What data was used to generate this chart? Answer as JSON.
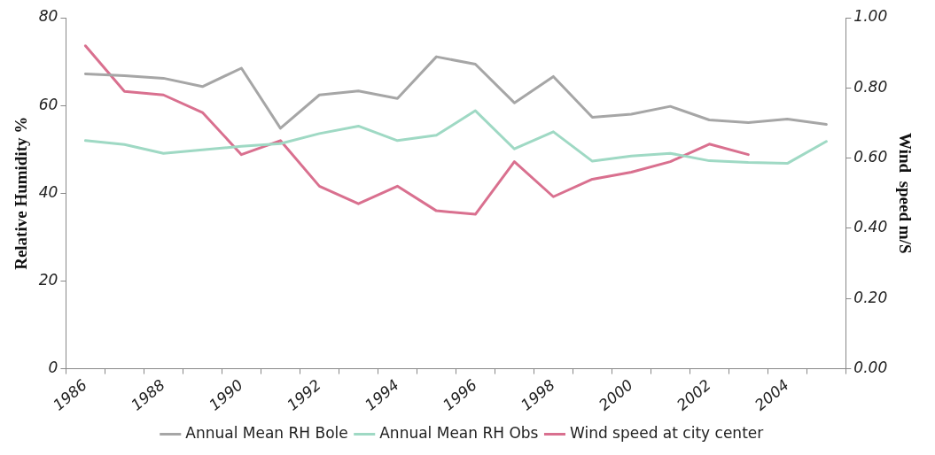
{
  "chart_data": {
    "type": "line",
    "ylabel": "Relative Humidity %",
    "y2label": "Wind  speed m/S",
    "categories": [
      "1986",
      null,
      "1988",
      null,
      "1990",
      null,
      "1992",
      null,
      "1994",
      null,
      "1996",
      null,
      "1998",
      null,
      "2000",
      null,
      "2002",
      null,
      "2004",
      null
    ],
    "series": [
      {
        "name": "Annual Mean RH Bole",
        "color": "#a6a6a6",
        "values": [
          67.2,
          66.8,
          66.2,
          64.3,
          68.5,
          54.8,
          62.4,
          63.3,
          61.6,
          71.1,
          69.4,
          60.6,
          66.6,
          57.3,
          58.0,
          59.8,
          56.7,
          56.1,
          56.9,
          55.7
        ]
      },
      {
        "name": "Annual Mean RH Obs",
        "color": "#9fd9c4",
        "values": [
          52.0,
          51.1,
          49.1,
          49.9,
          50.7,
          51.3,
          53.6,
          55.3,
          52.0,
          53.2,
          58.8,
          50.1,
          54.0,
          47.3,
          48.5,
          49.1,
          47.4,
          47.0,
          46.8,
          51.8
        ]
      },
      {
        "name": "Wind speed at city center",
        "color": "#d9708f",
        "axis": "y2",
        "values": [
          0.92,
          0.79,
          0.78,
          0.73,
          0.61,
          0.65,
          0.52,
          0.47,
          0.52,
          0.45,
          0.44,
          0.59,
          0.49,
          0.54,
          0.56,
          0.59,
          0.64,
          0.61,
          null,
          null
        ]
      }
    ],
    "ylim": [
      0,
      80
    ],
    "yticks": [
      0,
      20,
      40,
      60,
      80
    ],
    "y2lim": [
      0,
      1
    ],
    "y2ticks": [
      {
        "value": 0,
        "label": "0.00"
      },
      {
        "value": 0.2,
        "label": "0.20"
      },
      {
        "value": 0.4,
        "label": "0.40"
      },
      {
        "value": 0.6,
        "label": "0.60"
      },
      {
        "value": 0.8,
        "label": "0.80"
      },
      {
        "value": 1,
        "label": "1.00"
      }
    ],
    "grid": false,
    "legend": "bottom",
    "marker": "none",
    "line_style": "solid"
  }
}
